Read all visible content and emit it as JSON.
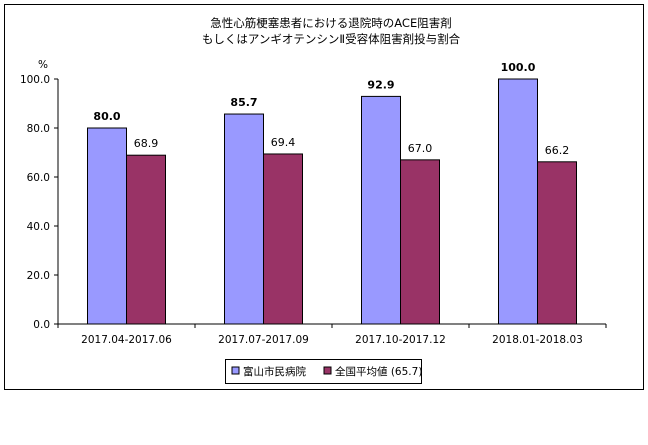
{
  "chart_data": {
    "type": "bar",
    "title_lines": [
      "急性心筋梗塞患者における退院時のACE阻害剤",
      "もしくはアンギオテンシンⅡ受容体阻害剤投与割合"
    ],
    "ylabel": "%",
    "ylim": [
      0,
      100
    ],
    "yticks": [
      "0.0",
      "20.0",
      "40.0",
      "60.0",
      "80.0",
      "100.0"
    ],
    "categories": [
      "2017.04-2017.06",
      "2017.07-2017.09",
      "2017.10-2017.12",
      "2018.01-2018.03"
    ],
    "series": [
      {
        "name": "富山市民病院",
        "values": [
          80.0,
          85.7,
          92.9,
          100.0
        ],
        "labels": [
          "80.0",
          "85.7",
          "92.9",
          "100.0"
        ],
        "color": "#9999ff",
        "bold_labels": true
      },
      {
        "name": "全国平均値 (65.7)",
        "values": [
          68.9,
          69.4,
          67.0,
          66.2
        ],
        "labels": [
          "68.9",
          "69.4",
          "67.0",
          "66.2"
        ],
        "color": "#993366",
        "bold_labels": false
      }
    ],
    "grid": false,
    "legend_position": "bottom"
  }
}
